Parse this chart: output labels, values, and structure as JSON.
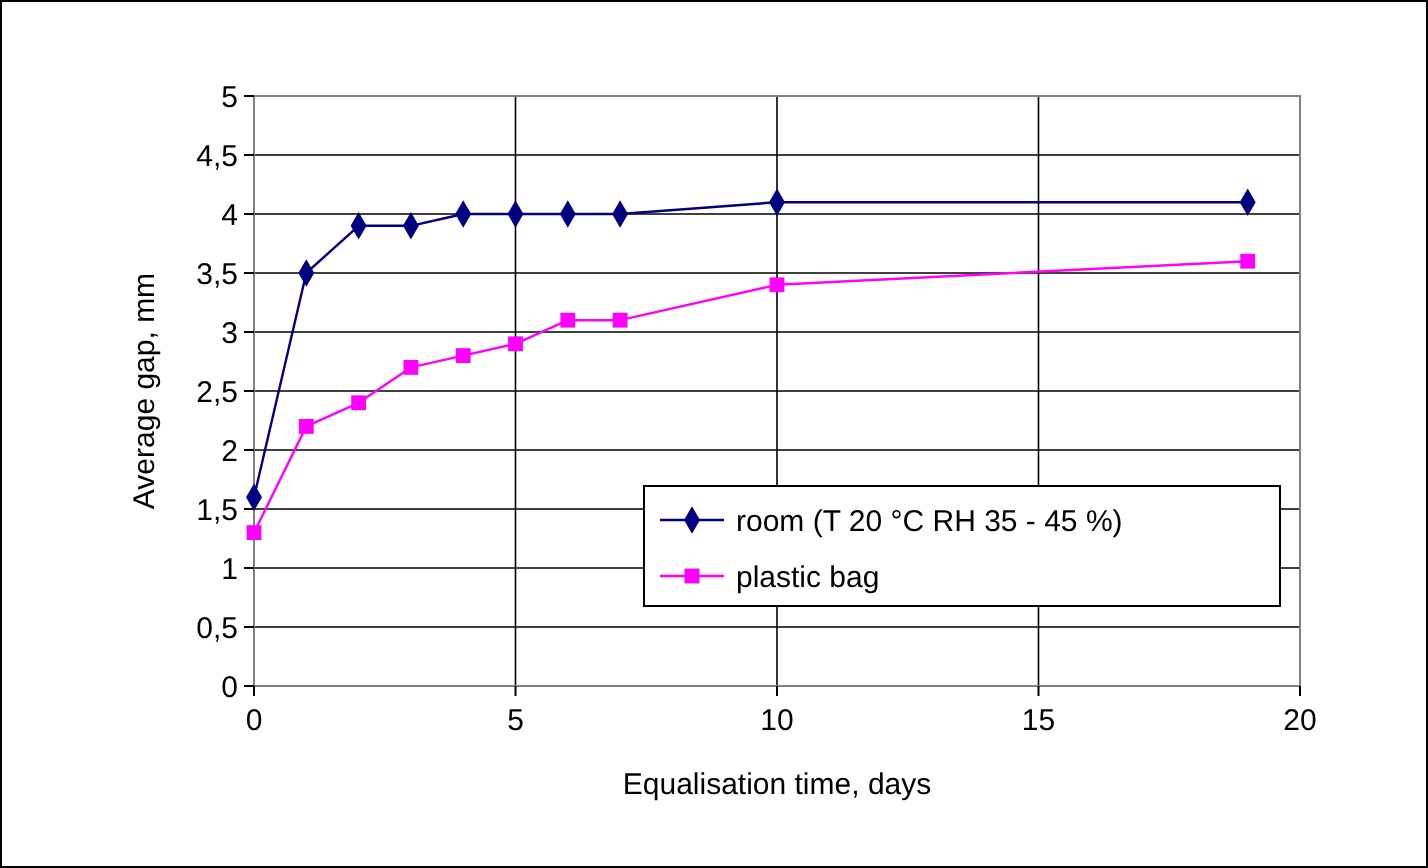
{
  "chart_data": {
    "type": "line",
    "xlabel": "Equalisation time, days",
    "ylabel": "Average gap, mm",
    "xlim": [
      0,
      20
    ],
    "xticks": [
      0,
      5,
      10,
      15,
      20
    ],
    "ylim": [
      0,
      5
    ],
    "yticks": [
      0,
      {
        "value": 0.5,
        "label": "0,5"
      },
      1,
      {
        "value": 1.5,
        "label": "1,5"
      },
      2,
      {
        "value": 2.5,
        "label": "2,5"
      },
      3,
      {
        "value": 3.5,
        "label": "3,5"
      },
      4,
      {
        "value": 4.5,
        "label": "4,5"
      },
      5
    ],
    "grid": true,
    "legend": "bottom right",
    "series": [
      {
        "name": "room (T 20 °C RH 35 - 45 %)",
        "color": "#000080",
        "marker": "diamond",
        "x": [
          0,
          1,
          2,
          3,
          4,
          5,
          6,
          7,
          10,
          19
        ],
        "values": [
          1.6,
          3.5,
          3.9,
          3.9,
          4.0,
          4.0,
          4.0,
          4.0,
          4.1,
          4.1
        ]
      },
      {
        "name": "plastic bag",
        "color": "#ff00ff",
        "marker": "square",
        "x": [
          0,
          1,
          2,
          3,
          4,
          5,
          6,
          7,
          10,
          19
        ],
        "values": [
          1.3,
          2.2,
          2.4,
          2.7,
          2.8,
          2.9,
          3.1,
          3.1,
          3.4,
          3.6
        ]
      }
    ]
  }
}
